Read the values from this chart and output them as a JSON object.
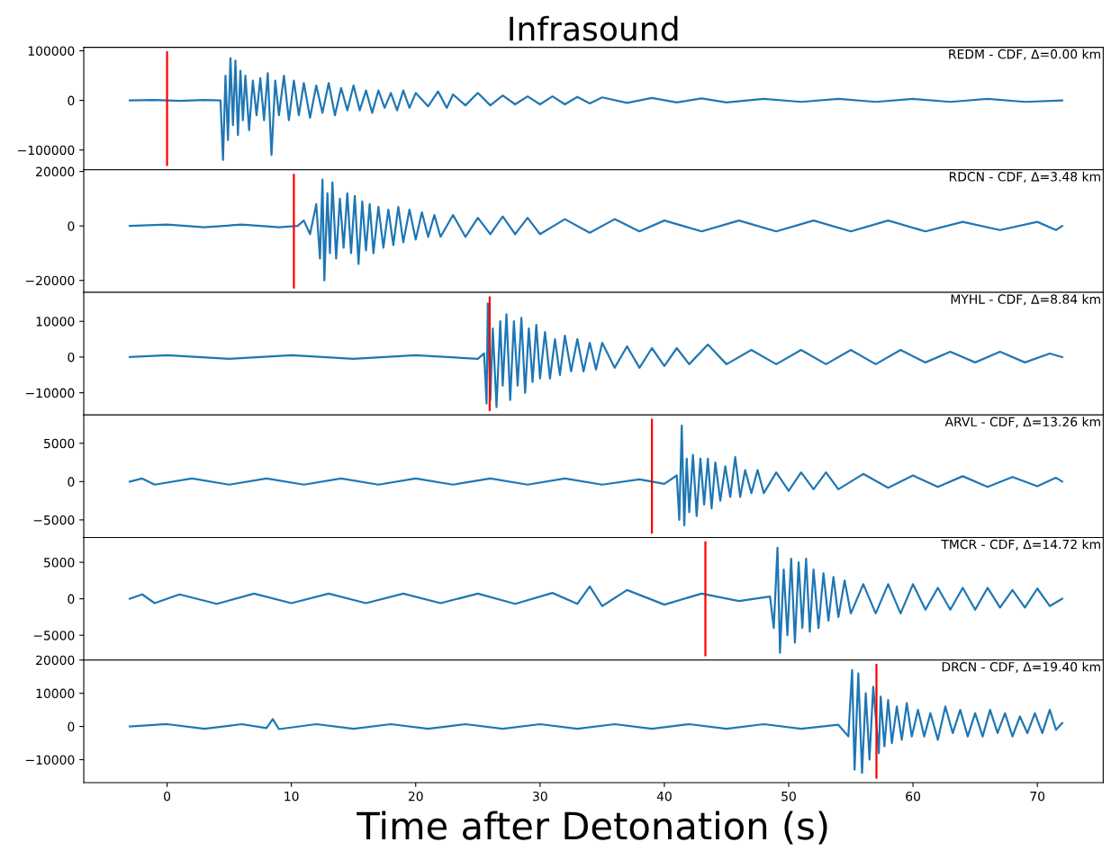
{
  "chart_data": [
    {
      "type": "line",
      "title": "Infrasound",
      "annotations": [
        "REDM - CDF, Δ=0.00 km"
      ],
      "tick_labels": "y",
      "xlim": [
        -6.7,
        75.3
      ],
      "ylim": [
        -140000,
        107000
      ],
      "yticks": [
        {
          "value": -100000,
          "label": "−100000"
        },
        0,
        100000
      ],
      "ref_lines": [
        {
          "axis": "x",
          "value": 0,
          "color": "#ff0000"
        }
      ],
      "series": [
        {
          "color": "#1f77b4",
          "x": [
            -3,
            -1,
            1,
            3,
            4.3,
            4.5,
            4.7,
            4.9,
            5.1,
            5.3,
            5.5,
            5.7,
            5.9,
            6.1,
            6.3,
            6.6,
            6.9,
            7.2,
            7.5,
            7.8,
            8.1,
            8.4,
            8.7,
            9.0,
            9.4,
            9.8,
            10.2,
            10.6,
            11,
            11.5,
            12,
            12.5,
            13,
            13.5,
            14,
            14.5,
            15,
            15.5,
            16,
            16.5,
            17,
            17.5,
            18,
            18.5,
            19,
            19.5,
            20,
            21,
            21.8,
            22.5,
            23,
            24,
            25,
            26,
            27,
            28,
            29,
            30,
            31,
            32,
            33,
            34,
            35,
            37,
            39,
            41,
            43,
            45,
            48,
            51,
            54,
            57,
            60,
            63,
            66,
            69,
            72
          ],
          "values": [
            0,
            1000,
            -1000,
            1000,
            0,
            -120000,
            50000,
            -80000,
            85000,
            -50000,
            80000,
            -70000,
            60000,
            -40000,
            50000,
            -60000,
            40000,
            -30000,
            45000,
            -40000,
            55000,
            -110000,
            40000,
            -30000,
            50000,
            -40000,
            40000,
            -30000,
            35000,
            -35000,
            30000,
            -25000,
            35000,
            -30000,
            25000,
            -20000,
            30000,
            -20000,
            20000,
            -25000,
            20000,
            -15000,
            15000,
            -20000,
            20000,
            -15000,
            15000,
            -12000,
            18000,
            -15000,
            12000,
            -10000,
            15000,
            -10000,
            10000,
            -8000,
            8000,
            -8000,
            8000,
            -8000,
            7000,
            -6000,
            6000,
            -5000,
            5000,
            -4000,
            4000,
            -4000,
            3000,
            -3000,
            3000,
            -3000,
            3000,
            -3000,
            3000,
            -3000,
            0
          ]
        }
      ]
    },
    {
      "type": "line",
      "annotations": [
        "RDCN - CDF, Δ=3.48 km"
      ],
      "tick_labels": "y",
      "xlim": [
        -6.7,
        75.3
      ],
      "ylim": [
        -24400,
        20600
      ],
      "yticks": [
        {
          "value": -20000,
          "label": "−20000"
        },
        0,
        20000
      ],
      "ref_lines": [
        {
          "axis": "x",
          "value": 10.2,
          "color": "#ff0000"
        }
      ],
      "series": [
        {
          "color": "#1f77b4",
          "x": [
            -3,
            0,
            3,
            6,
            9,
            10.5,
            11,
            11.5,
            12,
            12.3,
            12.5,
            12.65,
            12.9,
            13.1,
            13.3,
            13.6,
            13.9,
            14.2,
            14.5,
            14.8,
            15.1,
            15.4,
            15.7,
            16,
            16.3,
            16.6,
            17,
            17.4,
            17.8,
            18.2,
            18.6,
            19,
            19.5,
            20,
            20.5,
            21,
            21.5,
            22,
            23,
            24,
            25,
            26,
            27,
            28,
            29,
            30,
            32,
            34,
            36,
            38,
            40,
            43,
            46,
            49,
            52,
            55,
            58,
            61,
            64,
            67,
            70,
            71.5,
            72
          ],
          "values": [
            0,
            500,
            -500,
            500,
            -500,
            0,
            2000,
            -3000,
            8000,
            -12000,
            17000,
            -20000,
            12000,
            -10000,
            16000,
            -12000,
            10000,
            -8000,
            12000,
            -10000,
            11000,
            -14000,
            9000,
            -9000,
            8000,
            -10000,
            7000,
            -8000,
            6000,
            -7000,
            7000,
            -6000,
            6000,
            -5000,
            5000,
            -4000,
            4000,
            -4000,
            4000,
            -4000,
            3000,
            -3000,
            3500,
            -3000,
            3000,
            -3000,
            2500,
            -2500,
            2500,
            -2000,
            2000,
            -2000,
            2000,
            -2000,
            2000,
            -2000,
            2000,
            -2000,
            1500,
            -1500,
            1500,
            -1500,
            0
          ]
        }
      ]
    },
    {
      "type": "line",
      "annotations": [
        "MYHL - CDF, Δ=8.84 km"
      ],
      "tick_labels": "y",
      "xlim": [
        -6.7,
        75.3
      ],
      "ylim": [
        -16200,
        18100
      ],
      "yticks": [
        {
          "value": -10000,
          "label": "−10000"
        },
        0,
        10000
      ],
      "ref_lines": [
        {
          "axis": "x",
          "value": 25.95,
          "color": "#ff0000"
        }
      ],
      "series": [
        {
          "color": "#1f77b4",
          "x": [
            -3,
            0,
            5,
            10,
            15,
            20,
            25,
            25.5,
            25.7,
            25.8,
            26,
            26.2,
            26.5,
            26.8,
            27,
            27.3,
            27.6,
            27.9,
            28.2,
            28.5,
            28.8,
            29.1,
            29.4,
            29.7,
            30,
            30.4,
            30.8,
            31.2,
            31.6,
            32,
            32.5,
            33,
            33.5,
            34,
            34.5,
            35,
            36,
            37,
            38,
            39,
            40,
            41,
            42,
            43.5,
            45,
            47,
            49,
            51,
            53,
            55,
            57,
            59,
            61,
            63,
            65,
            67,
            69,
            71,
            72
          ],
          "values": [
            0,
            500,
            -500,
            500,
            -500,
            500,
            -500,
            1000,
            -13000,
            15000,
            -12000,
            8000,
            -14000,
            10000,
            -8000,
            12000,
            -12000,
            10000,
            -8000,
            11000,
            -10000,
            8000,
            -7000,
            9000,
            -6000,
            7000,
            -6000,
            5000,
            -5000,
            6000,
            -4000,
            5000,
            -4000,
            4000,
            -3500,
            4000,
            -3000,
            3000,
            -3000,
            2500,
            -2500,
            2500,
            -2000,
            3500,
            -2000,
            2000,
            -2000,
            2000,
            -2000,
            2000,
            -2000,
            2000,
            -1500,
            1500,
            -1500,
            1500,
            -1500,
            1000,
            0
          ]
        }
      ]
    },
    {
      "type": "line",
      "annotations": [
        "ARVL - CDF, Δ=13.26 km"
      ],
      "tick_labels": "y",
      "xlim": [
        -6.7,
        75.3
      ],
      "ylim": [
        -7300,
        8700
      ],
      "yticks": [
        {
          "value": -5000,
          "label": "−5000"
        },
        0,
        5000
      ],
      "ref_lines": [
        {
          "axis": "x",
          "value": 39.0,
          "color": "#ff0000"
        }
      ],
      "series": [
        {
          "color": "#1f77b4",
          "x": [
            -3,
            -2,
            -1,
            2,
            5,
            8,
            11,
            14,
            17,
            20,
            23,
            26,
            29,
            32,
            35,
            38,
            40,
            41,
            41.2,
            41.4,
            41.6,
            41.8,
            42,
            42.3,
            42.6,
            42.9,
            43.2,
            43.5,
            43.8,
            44.1,
            44.5,
            44.9,
            45.3,
            45.7,
            46.1,
            46.5,
            47,
            47.5,
            48,
            49,
            50,
            51,
            52,
            53,
            54,
            56,
            58,
            60,
            62,
            64,
            66,
            68,
            70,
            71.5,
            72
          ],
          "values": [
            0,
            400,
            -400,
            400,
            -400,
            400,
            -400,
            400,
            -400,
            400,
            -400,
            400,
            -400,
            400,
            -400,
            300,
            -300,
            800,
            -5000,
            7300,
            -5700,
            3000,
            -4000,
            3500,
            -4500,
            3000,
            -3000,
            3000,
            -3500,
            2500,
            -2500,
            2000,
            -2000,
            3200,
            -2000,
            1500,
            -1500,
            1500,
            -1500,
            1200,
            -1200,
            1200,
            -1000,
            1200,
            -1000,
            1000,
            -800,
            800,
            -700,
            700,
            -700,
            600,
            -600,
            500,
            0
          ]
        }
      ]
    },
    {
      "type": "line",
      "annotations": [
        "TMCR - CDF, Δ=14.72 km"
      ],
      "tick_labels": "y",
      "xlim": [
        -6.7,
        75.3
      ],
      "ylim": [
        -8400,
        8400
      ],
      "yticks": [
        {
          "value": -5000,
          "label": "−5000"
        },
        0,
        5000
      ],
      "ref_lines": [
        {
          "axis": "x",
          "value": 43.3,
          "color": "#ff0000"
        }
      ],
      "series": [
        {
          "color": "#1f77b4",
          "x": [
            -3,
            -2,
            -1,
            1,
            4,
            7,
            10,
            13,
            16,
            19,
            22,
            25,
            28,
            31,
            33,
            34,
            35,
            37,
            40,
            43,
            46,
            48.5,
            48.8,
            49.1,
            49.3,
            49.6,
            49.9,
            50.2,
            50.5,
            50.8,
            51.1,
            51.4,
            51.7,
            52,
            52.4,
            52.8,
            53.2,
            53.6,
            54,
            54.5,
            55,
            56,
            57,
            58,
            59,
            60,
            61,
            62,
            63,
            64,
            65,
            66,
            67,
            68,
            69,
            70,
            71,
            72
          ],
          "values": [
            0,
            600,
            -600,
            600,
            -700,
            700,
            -600,
            700,
            -600,
            700,
            -600,
            700,
            -700,
            800,
            -700,
            1700,
            -1000,
            1200,
            -800,
            700,
            -300,
            300,
            -4000,
            7000,
            -7400,
            4000,
            -5000,
            5500,
            -6000,
            5000,
            -4000,
            5500,
            -4500,
            4000,
            -4000,
            3500,
            -3000,
            3000,
            -2500,
            2500,
            -2000,
            2000,
            -2000,
            2000,
            -2000,
            2000,
            -1500,
            1500,
            -1500,
            1500,
            -1500,
            1500,
            -1200,
            1200,
            -1200,
            1400,
            -1000,
            0
          ]
        }
      ]
    },
    {
      "type": "line",
      "annotations": [
        "DRCN - CDF, Δ=19.40 km"
      ],
      "xlabel": "Time after Detonation (s)",
      "xlim": [
        -6.7,
        75.3
      ],
      "ylim": [
        -16900,
        20000
      ],
      "xticks": [
        0,
        10,
        20,
        30,
        40,
        50,
        60,
        70
      ],
      "yticks": [
        {
          "value": -10000,
          "label": "−10000"
        },
        0,
        10000,
        20000
      ],
      "ref_lines": [
        {
          "axis": "x",
          "value": 57.06,
          "color": "#ff0000"
        }
      ],
      "series": [
        {
          "color": "#1f77b4",
          "x": [
            -3,
            0,
            3,
            6,
            8,
            8.5,
            9,
            12,
            15,
            18,
            21,
            24,
            27,
            30,
            33,
            36,
            39,
            42,
            45,
            48,
            51,
            54,
            54.8,
            55.1,
            55.3,
            55.6,
            55.9,
            56.2,
            56.5,
            56.8,
            57.25,
            57.4,
            57.7,
            58,
            58.3,
            58.7,
            59.1,
            59.5,
            59.9,
            60.4,
            60.9,
            61.4,
            62,
            62.6,
            63.2,
            63.8,
            64.4,
            65,
            65.6,
            66.2,
            66.8,
            67.4,
            68,
            68.6,
            69.2,
            69.8,
            70.4,
            71,
            71.5,
            72
          ],
          "values": [
            0,
            700,
            -700,
            700,
            -500,
            2200,
            -800,
            700,
            -700,
            700,
            -700,
            700,
            -700,
            700,
            -700,
            700,
            -700,
            700,
            -700,
            700,
            -700,
            500,
            -3000,
            17000,
            -13000,
            16000,
            -14000,
            10000,
            -10000,
            12000,
            -8000,
            9000,
            -6000,
            8000,
            -5000,
            6000,
            -4000,
            7000,
            -3000,
            5000,
            -3000,
            4000,
            -4000,
            6000,
            -2000,
            5000,
            -3000,
            4000,
            -3000,
            5000,
            -2000,
            4000,
            -3000,
            3000,
            -2000,
            4000,
            -2000,
            5000,
            -1000,
            1000
          ]
        }
      ]
    }
  ]
}
